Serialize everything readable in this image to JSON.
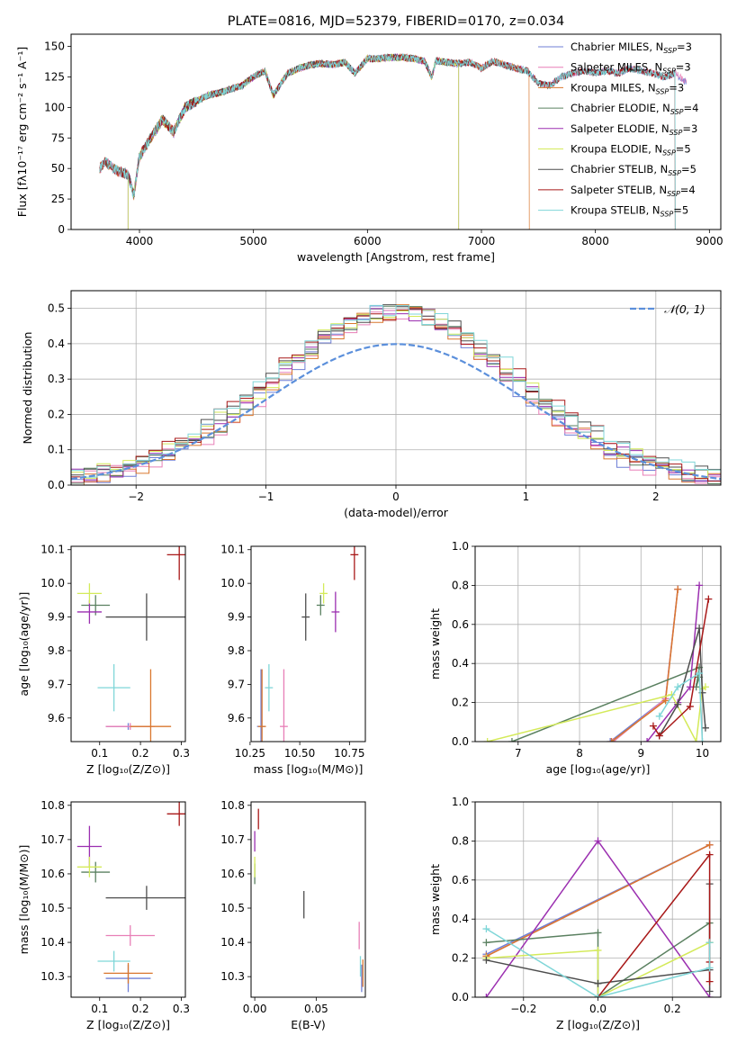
{
  "colors": {
    "chabrier_miles": "#6f7fd6",
    "salpeter_miles": "#e87fb7",
    "kroupa_miles": "#d9772e",
    "chabrier_elodie": "#5a8060",
    "salpeter_elodie": "#9b2fb0",
    "kroupa_elodie": "#d4ea5a",
    "chabrier_stelib": "#4d4d4d",
    "salpeter_stelib": "#a81818",
    "kroupa_stelib": "#7fd6d8",
    "normal": "#5b8fdb"
  },
  "legend_labels": [
    {
      "pre": "Chabrier MILES, N",
      "sub": "SSP",
      "post": "=3"
    },
    {
      "pre": "Salpeter MILES, N",
      "sub": "SSP",
      "post": "=3"
    },
    {
      "pre": "Kroupa MILES, N",
      "sub": "SSP",
      "post": "=3"
    },
    {
      "pre": "Chabrier ELODIE, N",
      "sub": "SSP",
      "post": "=4"
    },
    {
      "pre": "Salpeter ELODIE, N",
      "sub": "SSP",
      "post": "=3"
    },
    {
      "pre": "Kroupa ELODIE, N",
      "sub": "SSP",
      "post": "=5"
    },
    {
      "pre": "Chabrier STELIB, N",
      "sub": "SSP",
      "post": "=5"
    },
    {
      "pre": "Salpeter STELIB, N",
      "sub": "SSP",
      "post": "=4"
    },
    {
      "pre": "Kroupa STELIB, N",
      "sub": "SSP",
      "post": "=5"
    }
  ],
  "chart_data": [
    {
      "type": "line",
      "title": "PLATE=0816, MJD=52379, FIBERID=0170, z=0.034",
      "xlabel": "wavelength [Angstrom, rest frame]",
      "ylabel": "Flux [fλ10⁻¹⁷ erg cm⁻² s⁻¹ A⁻¹]",
      "xlim": [
        3400,
        9100
      ],
      "ylim": [
        0,
        160
      ],
      "xticks": [
        "4000",
        "5000",
        "6000",
        "7000",
        "8000",
        "9000"
      ],
      "yticks": [
        "0",
        "25",
        "50",
        "75",
        "100",
        "125",
        "150"
      ],
      "spectrum_anchors": {
        "x": [
          3650,
          3700,
          3800,
          3900,
          3950,
          4000,
          4100,
          4200,
          4300,
          4400,
          4500,
          4600,
          4700,
          4800,
          4900,
          5000,
          5100,
          5175,
          5300,
          5400,
          5500,
          5600,
          5700,
          5800,
          5890,
          6000,
          6100,
          6200,
          6300,
          6400,
          6500,
          6563,
          6600,
          6700,
          6800,
          6900,
          7000,
          7100,
          7200,
          7300,
          7400,
          7500,
          7600,
          7700,
          7800,
          7900,
          8000,
          8100,
          8200,
          8300,
          8400,
          8500,
          8600,
          8700,
          8800
        ],
        "y": [
          50,
          55,
          48,
          45,
          28,
          60,
          75,
          90,
          80,
          100,
          105,
          110,
          112,
          115,
          118,
          125,
          130,
          110,
          128,
          132,
          135,
          136,
          135,
          137,
          128,
          140,
          140,
          141,
          141,
          140,
          138,
          125,
          138,
          137,
          136,
          137,
          132,
          138,
          135,
          132,
          130,
          120,
          118,
          125,
          128,
          130,
          128,
          130,
          128,
          132,
          130,
          128,
          125,
          128,
          120
        ]
      },
      "series": [
        {
          "name": "Chabrier MILES",
          "x_range": [
            3650,
            8800
          ]
        },
        {
          "name": "Salpeter MILES",
          "x_range": [
            3650,
            8800
          ]
        },
        {
          "name": "Kroupa MILES",
          "x_range": [
            3650,
            7420
          ]
        },
        {
          "name": "Chabrier ELODIE",
          "x_range": [
            3900,
            6800
          ]
        },
        {
          "name": "Salpeter ELODIE",
          "x_range": [
            3900,
            6800
          ]
        },
        {
          "name": "Kroupa ELODIE",
          "x_range": [
            3900,
            6800
          ]
        },
        {
          "name": "Chabrier STELIB",
          "x_range": [
            3650,
            8700
          ]
        },
        {
          "name": "Salpeter STELIB",
          "x_range": [
            3650,
            8700
          ]
        },
        {
          "name": "Kroupa STELIB",
          "x_range": [
            3650,
            8700
          ]
        }
      ]
    },
    {
      "type": "line",
      "xlabel": "(data-model)/error",
      "ylabel": "Normed distribution",
      "xlim": [
        -2.5,
        2.5
      ],
      "ylim": [
        0,
        0.55
      ],
      "xticks": [
        "−2",
        "−1",
        "0",
        "1",
        "2"
      ],
      "yticks": [
        "0.0",
        "0.1",
        "0.2",
        "0.3",
        "0.4",
        "0.5"
      ],
      "grid": true,
      "normal_label": "𝒩(0, 1)",
      "normal_curve": {
        "mean": 0,
        "sigma": 1
      },
      "bin_width": 0.1,
      "histogram_amp": 0.47,
      "histogram_sigma": 0.92
    },
    {
      "type": "scatter",
      "xlabel": "Z [log₁₀(Z/Z⊙)]",
      "ylabel": "age  [log₁₀(age/yr)]",
      "xlim": [
        0.03,
        0.31
      ],
      "ylim": [
        9.53,
        10.11
      ],
      "xticks": [
        "0.1",
        "0.2",
        "0.3"
      ],
      "yticks": [
        "9.6",
        "9.7",
        "9.8",
        "9.9",
        "10.0",
        "10.1"
      ],
      "points": [
        {
          "series": "Chabrier MILES",
          "x": 0.17,
          "y": 9.575,
          "ex": 0.055,
          "ey": 0.01
        },
        {
          "series": "Salpeter MILES",
          "x": 0.175,
          "y": 9.575,
          "ex": 0.06,
          "ey": 0.01
        },
        {
          "series": "Kroupa MILES",
          "x": 0.225,
          "y": 9.575,
          "ex": 0.05,
          "ey": 0.17
        },
        {
          "series": "Chabrier ELODIE",
          "x": 0.09,
          "y": 9.935,
          "ex": 0.035,
          "ey": 0.03
        },
        {
          "series": "Salpeter ELODIE",
          "x": 0.075,
          "y": 9.915,
          "ex": 0.03,
          "ey": 0.035
        },
        {
          "series": "Kroupa ELODIE",
          "x": 0.075,
          "y": 9.97,
          "ex": 0.03,
          "ey": 0.03
        },
        {
          "series": "Chabrier STELIB",
          "x": 0.215,
          "y": 9.9,
          "ex": 0.1,
          "ey": 0.07
        },
        {
          "series": "Salpeter STELIB",
          "x": 0.295,
          "y": 10.085,
          "ex": 0.03,
          "ey": 0.075
        },
        {
          "series": "Kroupa STELIB",
          "x": 0.135,
          "y": 9.69,
          "ex": 0.04,
          "ey": 0.07
        }
      ]
    },
    {
      "type": "scatter",
      "xlabel": "mass [log₁₀(M/M⊙)]",
      "ylabel": "",
      "xlim": [
        10.255,
        10.83
      ],
      "ylim": [
        9.53,
        10.11
      ],
      "xticks": [
        "10.25",
        "10.50",
        "10.75"
      ],
      "yticks": [
        "9.6",
        "9.7",
        "9.8",
        "9.9",
        "10.0",
        "10.1"
      ],
      "points": [
        {
          "series": "Chabrier MILES",
          "x": 10.305,
          "y": 9.575,
          "ex": 0.02,
          "ey": 0.17
        },
        {
          "series": "Salpeter MILES",
          "x": 10.42,
          "y": 9.575,
          "ex": 0.02,
          "ey": 0.17
        },
        {
          "series": "Kroupa MILES",
          "x": 10.31,
          "y": 9.575,
          "ex": 0.02,
          "ey": 0.17
        },
        {
          "series": "Chabrier ELODIE",
          "x": 10.605,
          "y": 9.935,
          "ex": 0.02,
          "ey": 0.03
        },
        {
          "series": "Salpeter ELODIE",
          "x": 10.68,
          "y": 9.915,
          "ex": 0.02,
          "ey": 0.06
        },
        {
          "series": "Kroupa ELODIE",
          "x": 10.62,
          "y": 9.97,
          "ex": 0.02,
          "ey": 0.03
        },
        {
          "series": "Chabrier STELIB",
          "x": 10.53,
          "y": 9.9,
          "ex": 0.02,
          "ey": 0.07
        },
        {
          "series": "Salpeter STELIB",
          "x": 10.775,
          "y": 10.085,
          "ex": 0.02,
          "ey": 0.075
        },
        {
          "series": "Kroupa STELIB",
          "x": 10.345,
          "y": 9.69,
          "ex": 0.02,
          "ey": 0.07
        }
      ]
    },
    {
      "type": "line",
      "xlabel": "age  [log₁₀(age/yr)]",
      "ylabel": "mass weight",
      "xlim": [
        6.3,
        10.3
      ],
      "ylim": [
        0,
        1
      ],
      "xticks": [
        "7",
        "8",
        "9",
        "10"
      ],
      "yticks": [
        "0.0",
        "0.2",
        "0.4",
        "0.6",
        "0.8",
        "1.0"
      ],
      "grid": true,
      "series": [
        {
          "name": "Chabrier MILES",
          "x": [
            8.5,
            9.4,
            9.6
          ],
          "y": [
            0.0,
            0.22,
            0.78
          ]
        },
        {
          "name": "Salpeter MILES",
          "x": [
            8.55,
            9.4,
            9.6
          ],
          "y": [
            0.0,
            0.22,
            0.78
          ]
        },
        {
          "name": "Kroupa MILES",
          "x": [
            8.52,
            9.4,
            9.6
          ],
          "y": [
            0.0,
            0.21,
            0.78
          ]
        },
        {
          "name": "Chabrier ELODIE",
          "x": [
            6.9,
            9.95,
            9.9,
            9.95
          ],
          "y": [
            0.0,
            0.38,
            0.28,
            0.33
          ]
        },
        {
          "name": "Salpeter ELODIE",
          "x": [
            9.1,
            9.6,
            9.8,
            9.95
          ],
          "y": [
            0.0,
            0.2,
            0.28,
            0.8
          ]
        },
        {
          "name": "Kroupa ELODIE",
          "x": [
            6.5,
            9.5,
            9.9,
            10.0,
            10.05
          ],
          "y": [
            0.0,
            0.24,
            0.0,
            0.27,
            0.28
          ]
        },
        {
          "name": "Chabrier STELIB",
          "x": [
            9.3,
            9.6,
            9.95,
            10.0,
            10.05
          ],
          "y": [
            0.03,
            0.19,
            0.58,
            0.25,
            0.07
          ]
        },
        {
          "name": "Salpeter STELIB",
          "x": [
            9.2,
            9.3,
            9.8,
            10.1
          ],
          "y": [
            0.08,
            0.03,
            0.18,
            0.73
          ]
        },
        {
          "name": "Kroupa STELIB",
          "x": [
            9.3,
            9.6,
            9.95,
            10.0
          ],
          "y": [
            0.13,
            0.28,
            0.35,
            0.0
          ]
        }
      ]
    },
    {
      "type": "scatter",
      "xlabel": "Z [log₁₀(Z/Z⊙)]",
      "ylabel": "mass [log₁₀(M/M⊙)]",
      "xlim": [
        0.03,
        0.31
      ],
      "ylim": [
        10.24,
        10.81
      ],
      "xticks": [
        "0.1",
        "0.2",
        "0.3"
      ],
      "yticks": [
        "10.3",
        "10.4",
        "10.5",
        "10.6",
        "10.7",
        "10.8"
      ],
      "points": [
        {
          "series": "Chabrier MILES",
          "x": 0.17,
          "y": 10.295,
          "ex": 0.055,
          "ey": 0.04
        },
        {
          "series": "Salpeter MILES",
          "x": 0.175,
          "y": 10.42,
          "ex": 0.06,
          "ey": 0.03
        },
        {
          "series": "Kroupa MILES",
          "x": 0.17,
          "y": 10.31,
          "ex": 0.06,
          "ey": 0.03
        },
        {
          "series": "Chabrier ELODIE",
          "x": 0.09,
          "y": 10.605,
          "ex": 0.035,
          "ey": 0.03
        },
        {
          "series": "Salpeter ELODIE",
          "x": 0.075,
          "y": 10.68,
          "ex": 0.03,
          "ey": 0.06
        },
        {
          "series": "Kroupa ELODIE",
          "x": 0.075,
          "y": 10.62,
          "ex": 0.03,
          "ey": 0.03
        },
        {
          "series": "Chabrier STELIB",
          "x": 0.215,
          "y": 10.53,
          "ex": 0.1,
          "ey": 0.035
        },
        {
          "series": "Salpeter STELIB",
          "x": 0.295,
          "y": 10.775,
          "ex": 0.03,
          "ey": 0.035
        },
        {
          "series": "Kroupa STELIB",
          "x": 0.135,
          "y": 10.345,
          "ex": 0.04,
          "ey": 0.03
        }
      ]
    },
    {
      "type": "scatter",
      "xlabel": "E(B-V)",
      "ylabel": "",
      "xlim": [
        -0.003,
        0.09
      ],
      "ylim": [
        10.24,
        10.81
      ],
      "xticks": [
        "0.00",
        "0.05"
      ],
      "yticks": [
        "10.3",
        "10.4",
        "10.5",
        "10.6",
        "10.7",
        "10.8"
      ],
      "points": [
        {
          "series": "Chabrier MILES",
          "x": 0.087,
          "y": 10.295,
          "ex": 0,
          "ey": 0.04
        },
        {
          "series": "Salpeter MILES",
          "x": 0.085,
          "y": 10.42,
          "ex": 0,
          "ey": 0.04
        },
        {
          "series": "Kroupa MILES",
          "x": 0.088,
          "y": 10.31,
          "ex": 0,
          "ey": 0.04
        },
        {
          "series": "Chabrier ELODIE",
          "x": 0.0,
          "y": 10.6,
          "ex": 0,
          "ey": 0.03
        },
        {
          "series": "Salpeter ELODIE",
          "x": 0.0,
          "y": 10.695,
          "ex": 0,
          "ey": 0.03
        },
        {
          "series": "Kroupa ELODIE",
          "x": 0.0,
          "y": 10.62,
          "ex": 0,
          "ey": 0.03
        },
        {
          "series": "Chabrier STELIB",
          "x": 0.04,
          "y": 10.51,
          "ex": 0,
          "ey": 0.04
        },
        {
          "series": "Salpeter STELIB",
          "x": 0.003,
          "y": 10.76,
          "ex": 0,
          "ey": 0.03
        },
        {
          "series": "Kroupa STELIB",
          "x": 0.086,
          "y": 10.33,
          "ex": 0,
          "ey": 0.03
        }
      ]
    },
    {
      "type": "line",
      "xlabel": "Z [log₁₀(Z/Z⊙)]",
      "ylabel": "mass weight",
      "xlim": [
        -0.33,
        0.33
      ],
      "ylim": [
        0,
        1
      ],
      "xticks": [
        "−0.2",
        "0.0",
        "0.2"
      ],
      "yticks": [
        "0.0",
        "0.2",
        "0.4",
        "0.6",
        "0.8",
        "1.0"
      ],
      "grid": true,
      "series": [
        {
          "name": "Chabrier MILES",
          "x": [
            -0.3,
            0.3
          ],
          "y": [
            0.22,
            0.78
          ]
        },
        {
          "name": "Salpeter MILES",
          "x": [
            -0.3,
            0.3
          ],
          "y": [
            0.21,
            0.78
          ]
        },
        {
          "name": "Kroupa MILES",
          "x": [
            -0.3,
            0.3
          ],
          "y": [
            0.21,
            0.78
          ]
        },
        {
          "name": "Chabrier ELODIE",
          "x": [
            -0.3,
            0.0,
            0.0,
            0.3,
            0.3
          ],
          "y": [
            0.28,
            0.33,
            0.0,
            0.38,
            0.28
          ]
        },
        {
          "name": "Salpeter ELODIE",
          "x": [
            -0.3,
            0.0,
            0.3
          ],
          "y": [
            0.0,
            0.8,
            0.0
          ]
        },
        {
          "name": "Kroupa ELODIE",
          "x": [
            -0.3,
            0.0,
            0.0,
            0.3
          ],
          "y": [
            0.2,
            0.24,
            0.0,
            0.28
          ]
        },
        {
          "name": "Chabrier STELIB",
          "x": [
            -0.3,
            0.0,
            0.3,
            0.3,
            0.3
          ],
          "y": [
            0.19,
            0.07,
            0.14,
            0.58,
            0.03
          ]
        },
        {
          "name": "Salpeter STELIB",
          "x": [
            0.0,
            0.3,
            0.3,
            0.3
          ],
          "y": [
            0.0,
            0.73,
            0.18,
            0.08
          ]
        },
        {
          "name": "Kroupa STELIB",
          "x": [
            -0.3,
            0.0,
            0.3,
            0.3
          ],
          "y": [
            0.35,
            0.0,
            0.15,
            0.28
          ]
        }
      ]
    }
  ]
}
